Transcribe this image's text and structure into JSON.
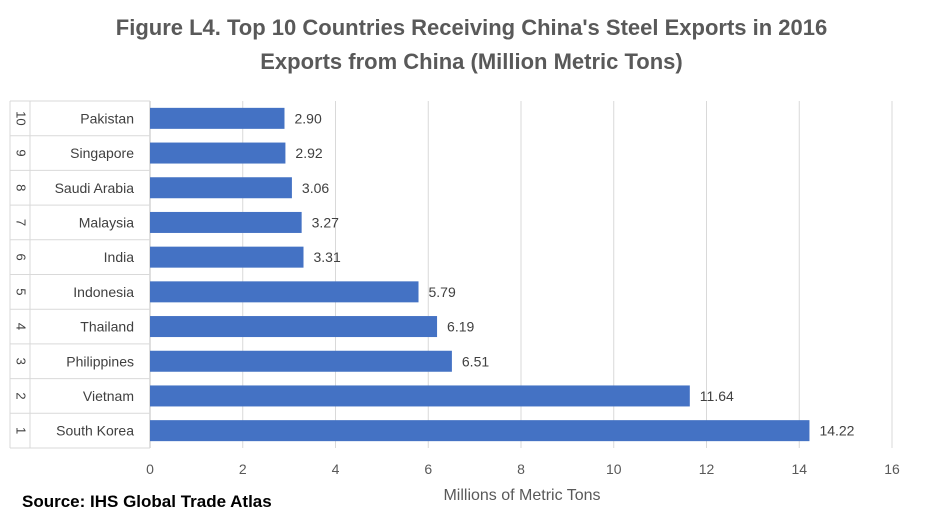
{
  "chart_data": {
    "type": "bar",
    "orientation": "horizontal",
    "title": "Figure L4. Top 10 Countries Receiving China's Steel Exports in 2016",
    "subtitle": "Exports from China (Million Metric Tons)",
    "xlabel": "Millions of Metric Tons",
    "ylabel": "",
    "xlim": [
      0,
      16
    ],
    "xticks": [
      0,
      2,
      4,
      6,
      8,
      10,
      12,
      14,
      16
    ],
    "grid": true,
    "bar_color": "#4472C4",
    "categories": [
      {
        "rank": "1",
        "name": "South Korea"
      },
      {
        "rank": "2",
        "name": "Vietnam"
      },
      {
        "rank": "3",
        "name": "Philippines"
      },
      {
        "rank": "4",
        "name": "Thailand"
      },
      {
        "rank": "5",
        "name": "Indonesia"
      },
      {
        "rank": "6",
        "name": "India"
      },
      {
        "rank": "7",
        "name": "Malaysia"
      },
      {
        "rank": "8",
        "name": "Saudi Arabia"
      },
      {
        "rank": "9",
        "name": "Singapore"
      },
      {
        "rank": "10",
        "name": "Pakistan"
      }
    ],
    "values": [
      14.22,
      11.64,
      6.51,
      6.19,
      5.79,
      3.31,
      3.27,
      3.06,
      2.92,
      2.9
    ],
    "value_labels": [
      "14.22",
      "11.64",
      "6.51",
      "6.19",
      "5.79",
      "3.31",
      "3.27",
      "3.06",
      "2.92",
      "2.90"
    ]
  },
  "source": "Source: IHS Global Trade Atlas"
}
